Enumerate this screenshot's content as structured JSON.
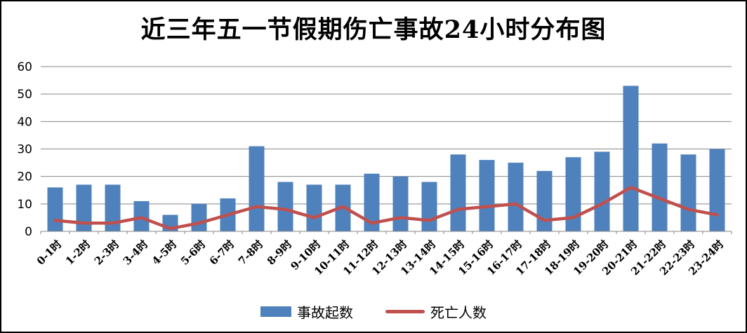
{
  "chart_data": {
    "type": "bar+line",
    "title": "近三年五一节假期伤亡事故24小时分布图",
    "categories": [
      "0-1时",
      "1-2时",
      "2-3时",
      "3-4时",
      "4-5时",
      "5-6时",
      "6-7时",
      "7-8时",
      "8-9时",
      "9-10时",
      "10-11时",
      "11-12时",
      "12-13时",
      "13-14时",
      "14-15时",
      "15-16时",
      "16-17时",
      "17-18时",
      "18-19时",
      "19-20时",
      "20-21时",
      "21-22时",
      "22-23时",
      "23-24时"
    ],
    "series": [
      {
        "name": "事故起数",
        "type": "bar",
        "color": "#4F81BD",
        "values": [
          16,
          17,
          17,
          11,
          6,
          10,
          12,
          31,
          18,
          17,
          17,
          21,
          20,
          18,
          28,
          26,
          25,
          22,
          27,
          29,
          53,
          32,
          28,
          30
        ]
      },
      {
        "name": "死亡人数",
        "type": "line",
        "color": "#C0504D",
        "values": [
          4,
          3,
          3,
          5,
          1,
          3,
          6,
          9,
          8,
          5,
          9,
          3,
          5,
          4,
          8,
          9,
          10,
          4,
          5,
          10,
          16,
          12,
          8,
          6
        ]
      }
    ],
    "xlabel": "",
    "ylabel": "",
    "ylim": [
      0,
      60
    ],
    "yticks": [
      0,
      10,
      20,
      30,
      40,
      50,
      60
    ],
    "grid": "horizontal",
    "legend_position": "bottom"
  },
  "colors": {
    "background": "#FFFFFF",
    "border": "#000000",
    "gridline": "#878787",
    "axis_text": "#000000"
  }
}
